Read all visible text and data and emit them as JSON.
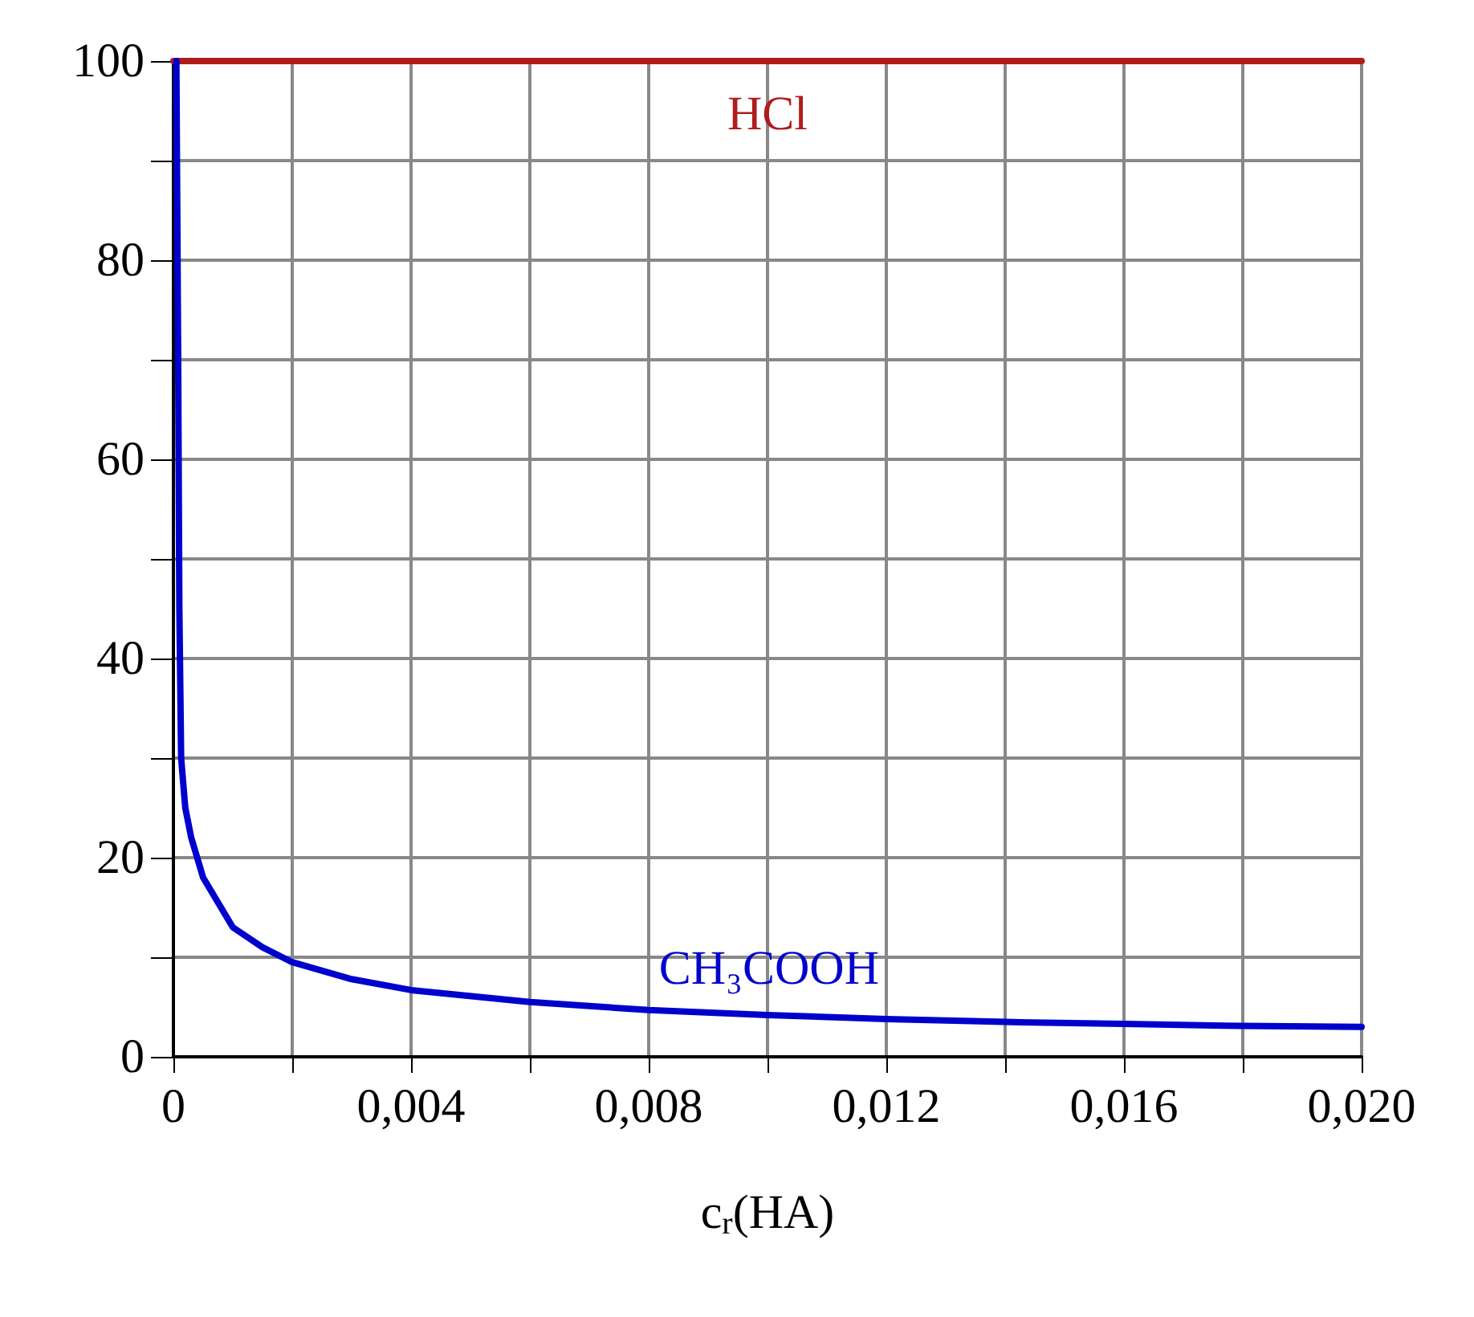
{
  "chart_data": {
    "type": "line",
    "xlabel": "c$_{r}$(HA)",
    "xlim": [
      0,
      0.02
    ],
    "ylim": [
      0,
      100
    ],
    "xticks": [
      0,
      {
        "value": 0.002,
        "label": null
      },
      {
        "value": 0.004,
        "label": "0,004"
      },
      {
        "value": 0.006,
        "label": null
      },
      {
        "value": 0.008,
        "label": "0,008"
      },
      {
        "value": 0.01,
        "label": null
      },
      {
        "value": 0.012,
        "label": "0,012"
      },
      {
        "value": 0.014,
        "label": null
      },
      {
        "value": 0.016,
        "label": "0,016"
      },
      {
        "value": 0.018,
        "label": null
      },
      {
        "value": 0.02,
        "label": "0,020"
      }
    ],
    "yticks": [
      0,
      {
        "value": 10,
        "label": null
      },
      20,
      {
        "value": 30,
        "label": null
      },
      40,
      {
        "value": 50,
        "label": null
      },
      60,
      {
        "value": 70,
        "label": null
      },
      80,
      {
        "value": 90,
        "label": null
      },
      100
    ],
    "grid": true,
    "legend": false,
    "marker": "none",
    "line_style": "solid",
    "series": [
      {
        "name": "HCl",
        "color": "#b01c1c",
        "x": [
          0,
          0.02
        ],
        "values": [
          100,
          100
        ]
      },
      {
        "name": "CH₃COOH",
        "color": "#0000cc",
        "x": [
          5e-05,
          8e-05,
          0.0001,
          0.00013,
          0.0002,
          0.0003,
          0.0005,
          0.001,
          0.0015,
          0.002,
          0.003,
          0.004,
          0.006,
          0.008,
          0.01,
          0.012,
          0.014,
          0.016,
          0.018,
          0.02
        ],
        "values": [
          100,
          70,
          45,
          30,
          25,
          22,
          18,
          13,
          11,
          9.5,
          7.8,
          6.7,
          5.5,
          4.7,
          4.2,
          3.8,
          3.5,
          3.3,
          3.1,
          3.0
        ]
      }
    ]
  }
}
